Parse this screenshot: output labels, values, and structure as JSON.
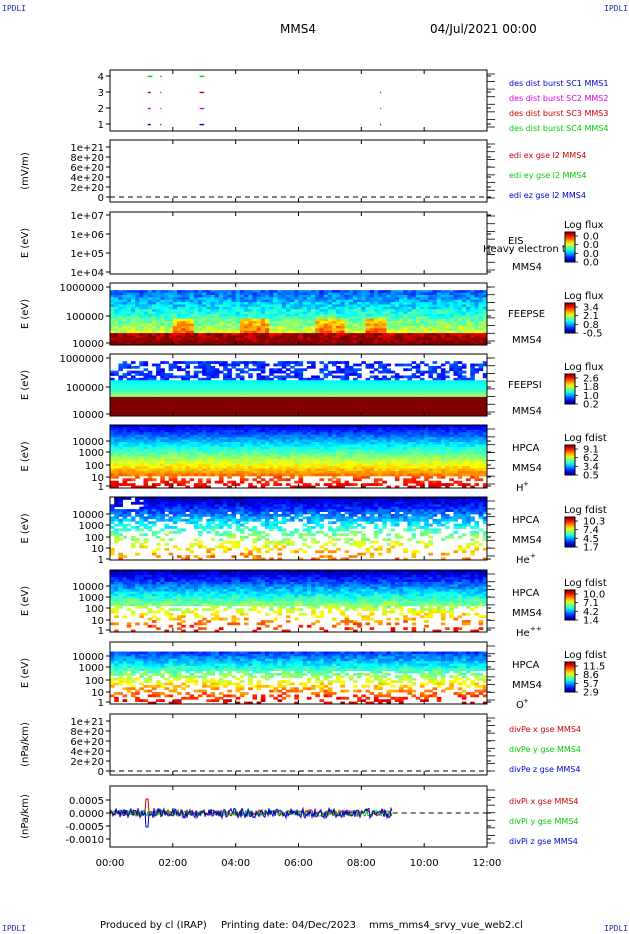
{
  "header": {
    "corner_tl": "IPDLI",
    "corner_tr": "IPDLI",
    "corner_bl": "IPDLI",
    "corner_br": "IPDLI",
    "spacecraft": "MMS4",
    "date": "04/Jul/2021 00:00"
  },
  "footer": {
    "produced_by": "Produced by cl (IRAP)",
    "printing_date": "Printing date: 04/Dec/2023",
    "filename": "mms_mms4_srvy_vue_web2.cl"
  },
  "colors": {
    "series_red": "#cc0000",
    "series_green": "#00cc00",
    "series_blue": "#0000cc",
    "series_magenta": "#dd00dd"
  },
  "chart_data": [
    {
      "type": "scatter",
      "id": "burst",
      "ylabel": "",
      "yticks": [
        "1",
        "2",
        "3",
        "4"
      ],
      "ylim": [
        0.6,
        4.4
      ],
      "legend": [
        {
          "label": "des dist burst SC1 MMS1",
          "color": "#0000cc"
        },
        {
          "label": "des dist burst SC2 MMS2",
          "color": "#dd00dd"
        },
        {
          "label": "des dist burst SC3 MMS3",
          "color": "#cc0000"
        },
        {
          "label": "des dist burst SC4 MMS4",
          "color": "#00cc00"
        }
      ],
      "series": [
        {
          "name": "des dist burst SC4 MMS4",
          "y": 4,
          "intervals": [
            [
              1.2,
              1.35
            ],
            [
              1.6,
              1.65
            ],
            [
              2.85,
              3.0
            ]
          ]
        },
        {
          "name": "des dist burst SC3 MMS3",
          "y": 3,
          "intervals": [
            [
              1.2,
              1.3
            ],
            [
              1.6,
              1.63
            ],
            [
              2.85,
              3.0
            ],
            [
              8.6,
              8.62
            ]
          ]
        },
        {
          "name": "des dist burst SC2 MMS2",
          "y": 2,
          "intervals": [
            [
              1.2,
              1.3
            ],
            [
              1.6,
              1.63
            ],
            [
              2.85,
              3.0
            ],
            [
              8.6,
              8.62
            ]
          ]
        },
        {
          "name": "des dist burst SC1 MMS1",
          "y": 1,
          "intervals": [
            [
              1.2,
              1.3
            ],
            [
              1.6,
              1.63
            ],
            [
              2.85,
              3.0
            ],
            [
              8.6,
              8.62
            ]
          ]
        }
      ]
    },
    {
      "type": "line",
      "id": "edi",
      "ylabel": "(mV/m)",
      "yticks": [
        "0",
        "2e+20",
        "4e+20",
        "6e+20",
        "8e+20",
        "1e+21"
      ],
      "ylim": [
        0,
        1e+21
      ],
      "legend": [
        {
          "label": "edi ex gse l2 MMS4",
          "color": "#cc0000"
        },
        {
          "label": "edi ey gse l2 MMS4",
          "color": "#00cc00"
        },
        {
          "label": "edi ez gse l2 MMS4",
          "color": "#0000cc"
        }
      ],
      "zero_line": true
    },
    {
      "type": "heatmap",
      "id": "eis",
      "ylabel": "E (eV)",
      "yticks": [
        "1e+04",
        "1e+05",
        "1e+06",
        "1e+07"
      ],
      "instrument": "EIS",
      "subtitle": "Heavy electron to",
      "sc": "MMS4",
      "colorbar": {
        "title": "Log flux",
        "ticks": [
          "0.0",
          "0.0",
          "0.0",
          "0.0"
        ]
      },
      "empty": true
    },
    {
      "type": "heatmap",
      "id": "feepse",
      "ylabel": "E (eV)",
      "yticks": [
        "10000",
        "100000",
        "1000000"
      ],
      "instrument": "FEEPSE",
      "sc": "MMS4",
      "colorbar": {
        "title": "Log flux",
        "ticks": [
          "3.4",
          "2.1",
          "0.8",
          "-0.5"
        ]
      }
    },
    {
      "type": "heatmap",
      "id": "feepsi",
      "ylabel": "E (eV)",
      "yticks": [
        "10000",
        "100000",
        "1000000"
      ],
      "instrument": "FEEPSI",
      "sc": "MMS4",
      "colorbar": {
        "title": "Log flux",
        "ticks": [
          "2.6",
          "1.8",
          "1.0",
          "0.2"
        ]
      }
    },
    {
      "type": "heatmap",
      "id": "hpca_h",
      "ylabel": "E (eV)",
      "yticks": [
        "1",
        "10",
        "100",
        "1000",
        "10000"
      ],
      "instrument": "HPCA",
      "sc": "MMS4",
      "species": "H",
      "species_sup": "+",
      "colorbar": {
        "title": "Log fdist",
        "ticks": [
          "9.1",
          "6.2",
          "3.4",
          "0.5"
        ]
      }
    },
    {
      "type": "heatmap",
      "id": "hpca_he",
      "ylabel": "E (eV)",
      "yticks": [
        "1",
        "10",
        "100",
        "1000",
        "10000"
      ],
      "instrument": "HPCA",
      "sc": "MMS4",
      "species": "He",
      "species_sup": "+",
      "colorbar": {
        "title": "Log fdist",
        "ticks": [
          "10.3",
          "7.4",
          "4.5",
          "1.7"
        ]
      }
    },
    {
      "type": "heatmap",
      "id": "hpca_hepp",
      "ylabel": "E (eV)",
      "yticks": [
        "1",
        "10",
        "100",
        "1000",
        "10000"
      ],
      "instrument": "HPCA",
      "sc": "MMS4",
      "species": "He",
      "species_sup": "++",
      "colorbar": {
        "title": "Log fdist",
        "ticks": [
          "10.0",
          "7.1",
          "4.2",
          "1.4"
        ]
      }
    },
    {
      "type": "heatmap",
      "id": "hpca_o",
      "ylabel": "E (eV)",
      "yticks": [
        "1",
        "10",
        "100",
        "1000",
        "10000"
      ],
      "instrument": "HPCA",
      "sc": "MMS4",
      "species": "O",
      "species_sup": "+",
      "colorbar": {
        "title": "Log fdist",
        "ticks": [
          "11.5",
          "8.6",
          "5.7",
          "2.9"
        ]
      }
    },
    {
      "type": "line",
      "id": "divpe",
      "ylabel": "(nPa/km)",
      "yticks": [
        "0",
        "2e+20",
        "4e+20",
        "6e+20",
        "8e+20",
        "1e+21"
      ],
      "ylim": [
        0,
        1e+21
      ],
      "legend": [
        {
          "label": "divPe x gse MMS4",
          "color": "#cc0000"
        },
        {
          "label": "divPe y gse MMS4",
          "color": "#00cc00"
        },
        {
          "label": "divPe z gse MMS4",
          "color": "#0000cc"
        }
      ],
      "zero_line": true
    },
    {
      "type": "line",
      "id": "divpi",
      "ylabel": "(nPa/km)",
      "yticks": [
        "-0.0010",
        "-0.0005",
        "0.0000",
        "0.0005"
      ],
      "ylim": [
        -0.00125,
        0.0007
      ],
      "data_end_hour": 9.0,
      "legend": [
        {
          "label": "divPi x gse MMS4",
          "color": "#cc0000"
        },
        {
          "label": "divPi y gse MMS4",
          "color": "#00cc00"
        },
        {
          "label": "divPi z gse MMS4",
          "color": "#0000cc"
        }
      ],
      "zero_line": true
    }
  ],
  "xaxis": {
    "ticks": [
      "00:00",
      "02:00",
      "04:00",
      "06:00",
      "08:00",
      "10:00",
      "12:00"
    ],
    "xlim_hours": [
      0,
      12
    ]
  }
}
